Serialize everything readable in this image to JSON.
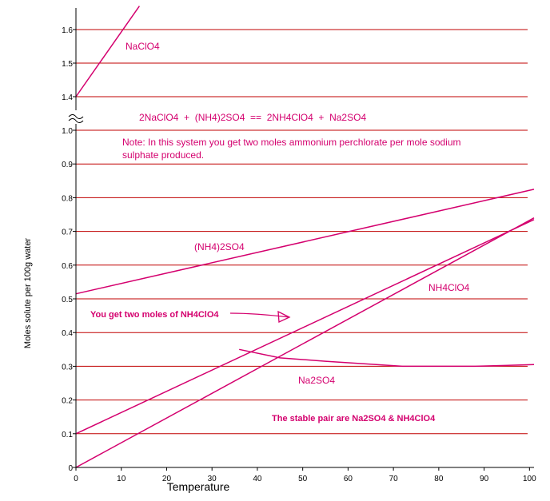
{
  "chart_data": {
    "type": "line",
    "title": "",
    "xlabel": "Temperature",
    "ylabel": "Moles solute per 100g water",
    "xlim": [
      0,
      101
    ],
    "ylim": [
      0,
      1.6
    ],
    "axis_break": {
      "between": [
        1.0,
        1.4
      ]
    },
    "x_ticks": [
      "0",
      "10",
      "20",
      "30",
      "40",
      "50",
      "60",
      "70",
      "80",
      "90",
      "100"
    ],
    "y_ticks": [
      "0",
      "0.1",
      "0.2",
      "0.3",
      "0.4",
      "0.5",
      "0.6",
      "0.7",
      "0.8",
      "0.9",
      "1.0",
      "1.4",
      "1.5",
      "1.6"
    ],
    "grid": "horizontal",
    "series": [
      {
        "name": "NaClO4",
        "color": "#d4006e",
        "points": [
          [
            0,
            1.4
          ],
          [
            14,
            1.67
          ]
        ]
      },
      {
        "name": "(NH4)2SO4",
        "color": "#d4006e",
        "points": [
          [
            0,
            0.515
          ],
          [
            101,
            0.825
          ]
        ]
      },
      {
        "name": "NH4ClO4",
        "color": "#d4006e",
        "points": [
          [
            0,
            0.1
          ],
          [
            101,
            0.735
          ]
        ]
      },
      {
        "name": "Na2SO4",
        "color": "#d4006e",
        "points": [
          [
            36,
            0.35
          ],
          [
            45,
            0.325
          ],
          [
            55,
            0.315
          ],
          [
            72,
            0.3
          ],
          [
            88,
            0.3
          ],
          [
            101,
            0.305
          ]
        ]
      },
      {
        "name": "",
        "color": "#d4006e",
        "points": [
          [
            0,
            0.0
          ],
          [
            101,
            0.74
          ]
        ]
      }
    ],
    "annotations": {
      "equation": "2NaClO4  +  (NH4)2SO4  ==  2NH4ClO4  +  Na2SO4",
      "note_line1": "Note: In this system you get two moles ammonium perchlorate per mole sodium",
      "note_line2": "sulphate produced.",
      "two_moles": "You get two moles of NH4ClO4",
      "stable_pair": "The stable pair are Na2SO4 & NH4ClO4"
    },
    "colors": {
      "grid": "#c00000",
      "series": "#d4006e",
      "text": "#d4006e"
    }
  }
}
